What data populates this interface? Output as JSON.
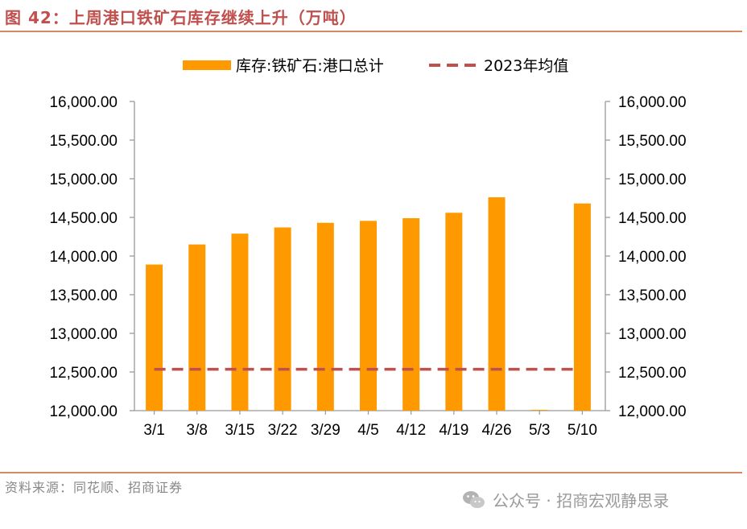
{
  "figure": {
    "title": "图 42：上周港口铁矿石库存继续上升（万吨）",
    "source": "资料来源：同花顺、招商证券",
    "watermark": "公众号 · 招商宏观静思录",
    "watermark_icon": "wechat-icon"
  },
  "colors": {
    "bar": "#ff9900",
    "mean_line": "#c0504d",
    "title": "#c0504d",
    "rule": "#d48a63"
  },
  "chart_data": {
    "type": "bar",
    "title": "上周港口铁矿石库存继续上升（万吨）",
    "xlabel": "",
    "ylabel": "",
    "categories": [
      "3/1",
      "3/8",
      "3/15",
      "3/22",
      "3/29",
      "4/5",
      "4/12",
      "4/19",
      "4/26",
      "5/3",
      "5/10"
    ],
    "series": [
      {
        "name": "库存:铁矿石:港口总计",
        "values": [
          13890,
          14150,
          14290,
          14370,
          14430,
          14455,
          14490,
          14560,
          14760,
          12010,
          14680
        ]
      }
    ],
    "reference_line": {
      "name": "2023年均值",
      "value": 12535,
      "style": "dashed"
    },
    "ylim": [
      12000,
      16000
    ],
    "y_ticks": [
      "12,000.00",
      "12,500.00",
      "13,000.00",
      "13,500.00",
      "14,000.00",
      "14,500.00",
      "15,000.00",
      "15,500.00",
      "16,000.00"
    ],
    "y_tick_values": [
      12000,
      12500,
      13000,
      13500,
      14000,
      14500,
      15000,
      15500,
      16000
    ],
    "secondary_axis": true,
    "legend_position": "top-center",
    "grid": false
  }
}
